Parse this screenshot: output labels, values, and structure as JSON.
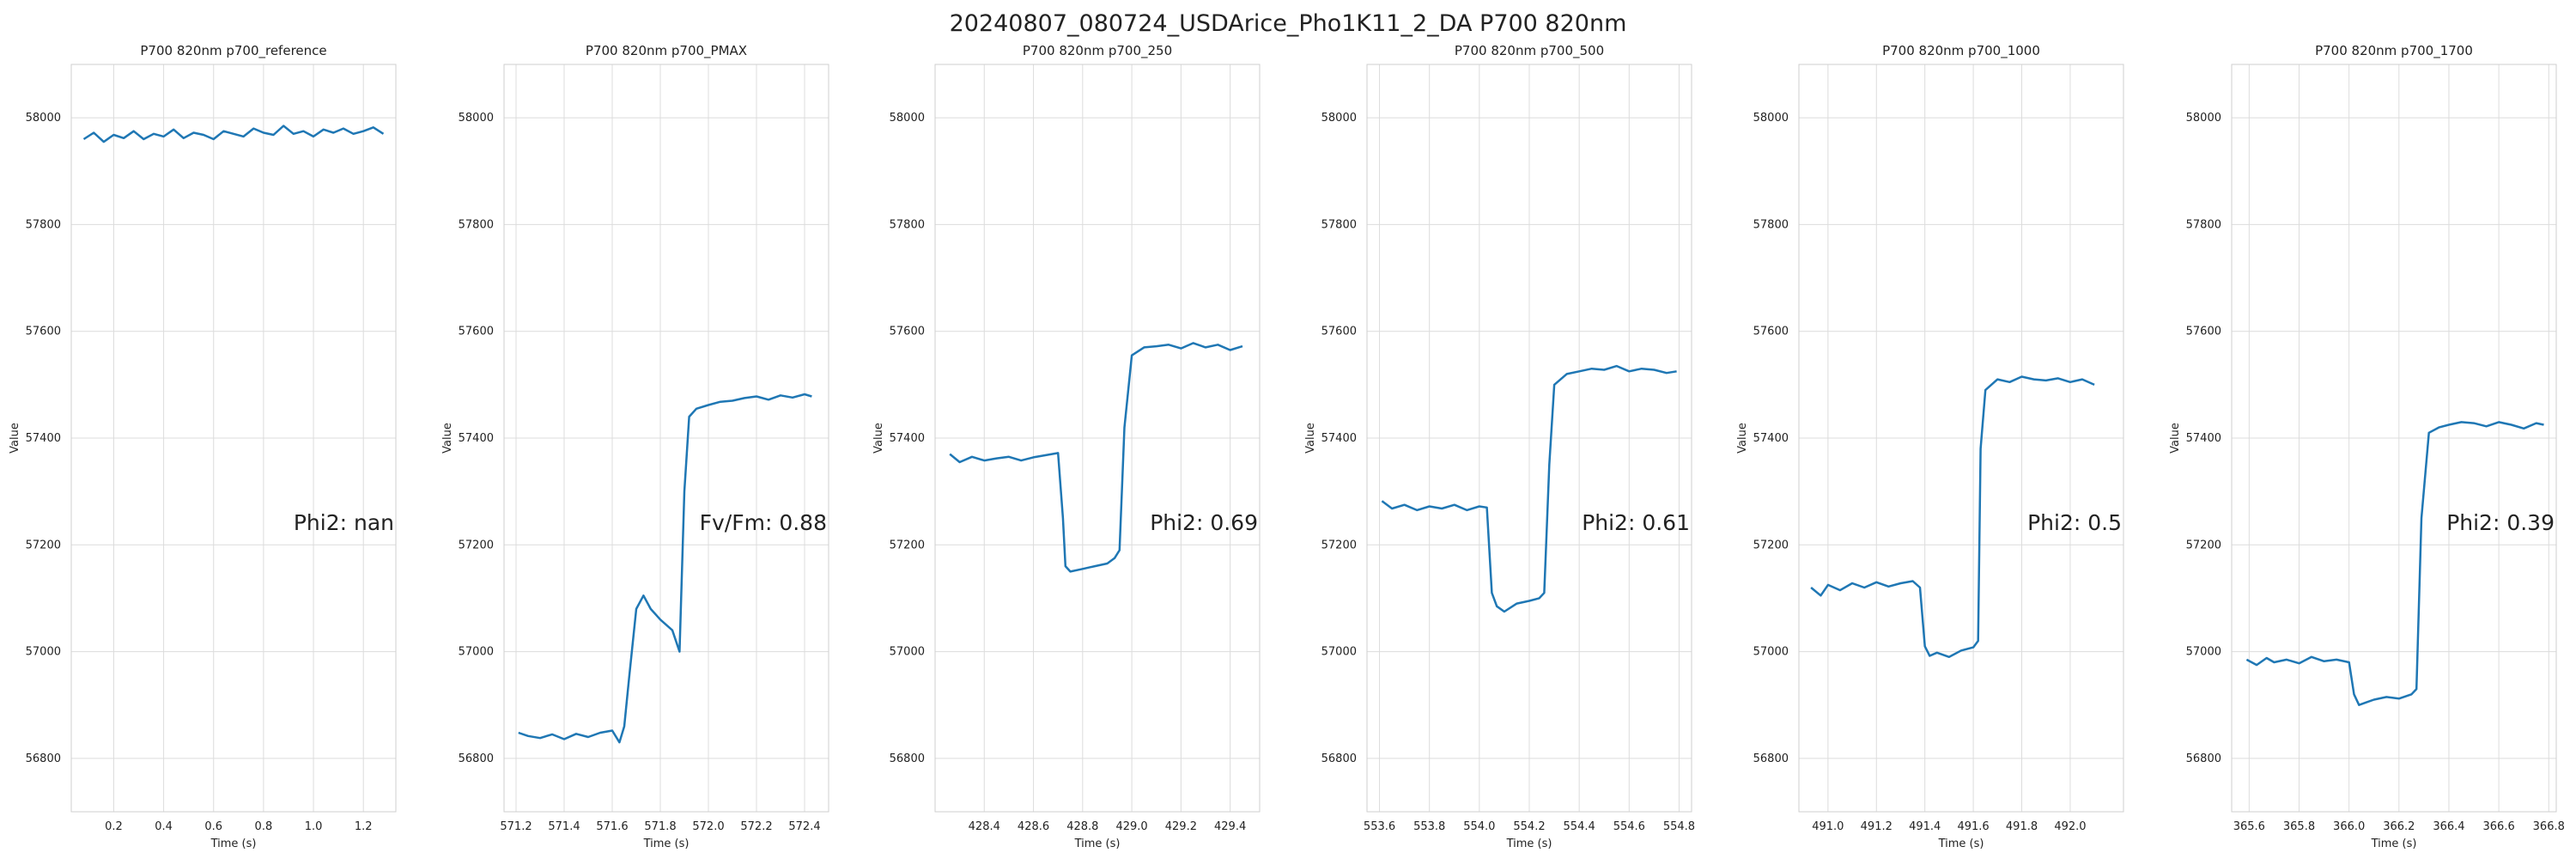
{
  "figure": {
    "title": "20240807_080724_USDArice_Pho1K11_2_DA P700 820nm"
  },
  "style": {
    "line_color": "#1f77b4",
    "grid_color": "#dcdcdc",
    "frame_color": "#cfcfcf",
    "text_color": "#222222",
    "grid": true
  },
  "chart_data": [
    {
      "type": "line",
      "title": "P700 820nm p700_reference",
      "xlabel": "Time (s)",
      "ylabel": "Value",
      "xlim": [
        0.03,
        1.33
      ],
      "ylim": [
        56700,
        58100
      ],
      "xticks": [
        0.2,
        0.4,
        0.6,
        0.8,
        1.0,
        1.2
      ],
      "xtick_labels": [
        "0.2",
        "0.4",
        "0.6",
        "0.8",
        "1.0",
        "1.2"
      ],
      "yticks": [
        56800,
        57000,
        57200,
        57400,
        57600,
        57800,
        58000
      ],
      "ytick_labels": [
        "56800",
        "57000",
        "57200",
        "57400",
        "57600",
        "57800",
        "58000"
      ],
      "annotation": "Phi2: nan",
      "series": [
        {
          "x": [
            0.08,
            0.12,
            0.16,
            0.2,
            0.24,
            0.28,
            0.32,
            0.36,
            0.4,
            0.44,
            0.48,
            0.52,
            0.56,
            0.6,
            0.64,
            0.68,
            0.72,
            0.76,
            0.8,
            0.84,
            0.88,
            0.92,
            0.96,
            1.0,
            1.04,
            1.08,
            1.12,
            1.16,
            1.2,
            1.24,
            1.28
          ],
          "y": [
            57960,
            57972,
            57955,
            57968,
            57962,
            57975,
            57960,
            57970,
            57965,
            57978,
            57962,
            57972,
            57968,
            57960,
            57975,
            57970,
            57965,
            57980,
            57972,
            57968,
            57985,
            57970,
            57975,
            57965,
            57978,
            57972,
            57980,
            57970,
            57975,
            57982,
            57970
          ]
        }
      ]
    },
    {
      "type": "line",
      "title": "P700 820nm p700_PMAX",
      "xlabel": "Time (s)",
      "ylabel": "Value",
      "xlim": [
        571.15,
        572.5
      ],
      "ylim": [
        56700,
        58100
      ],
      "xticks": [
        571.2,
        571.4,
        571.6,
        571.8,
        572.0,
        572.2,
        572.4
      ],
      "xtick_labels": [
        "571.2",
        "571.4",
        "571.6",
        "571.8",
        "572.0",
        "572.2",
        "572.4"
      ],
      "yticks": [
        56800,
        57000,
        57200,
        57400,
        57600,
        57800,
        58000
      ],
      "ytick_labels": [
        "56800",
        "57000",
        "57200",
        "57400",
        "57600",
        "57800",
        "58000"
      ],
      "annotation": "Fv/Fm: 0.88",
      "series": [
        {
          "x": [
            571.21,
            571.25,
            571.3,
            571.35,
            571.4,
            571.45,
            571.5,
            571.55,
            571.6,
            571.63,
            571.65,
            571.67,
            571.7,
            571.73,
            571.76,
            571.8,
            571.85,
            571.88,
            571.9,
            571.92,
            571.95,
            572.0,
            572.05,
            572.1,
            572.15,
            572.2,
            572.25,
            572.3,
            572.35,
            572.4,
            572.43
          ],
          "y": [
            56848,
            56842,
            56838,
            56845,
            56836,
            56846,
            56840,
            56848,
            56852,
            56830,
            56860,
            56950,
            57080,
            57105,
            57080,
            57060,
            57040,
            57000,
            57300,
            57440,
            57455,
            57462,
            57468,
            57470,
            57475,
            57478,
            57472,
            57480,
            57476,
            57482,
            57478
          ]
        }
      ]
    },
    {
      "type": "line",
      "title": "P700 820nm p700_250",
      "xlabel": "Time (s)",
      "ylabel": "Value",
      "xlim": [
        428.2,
        429.52
      ],
      "ylim": [
        56700,
        58100
      ],
      "xticks": [
        428.4,
        428.6,
        428.8,
        429.0,
        429.2,
        429.4
      ],
      "xtick_labels": [
        "428.4",
        "428.6",
        "428.8",
        "429.0",
        "429.2",
        "429.4"
      ],
      "yticks": [
        56800,
        57000,
        57200,
        57400,
        57600,
        57800,
        58000
      ],
      "ytick_labels": [
        "56800",
        "57000",
        "57200",
        "57400",
        "57600",
        "57800",
        "58000"
      ],
      "annotation": "Phi2: 0.69",
      "series": [
        {
          "x": [
            428.26,
            428.3,
            428.35,
            428.4,
            428.45,
            428.5,
            428.55,
            428.6,
            428.65,
            428.7,
            428.72,
            428.73,
            428.75,
            428.8,
            428.85,
            428.9,
            428.93,
            428.95,
            428.97,
            429.0,
            429.05,
            429.1,
            429.15,
            429.2,
            429.25,
            429.3,
            429.35,
            429.4,
            429.45
          ],
          "y": [
            57370,
            57355,
            57365,
            57358,
            57362,
            57365,
            57358,
            57364,
            57368,
            57372,
            57250,
            57160,
            57150,
            57155,
            57160,
            57165,
            57175,
            57190,
            57420,
            57555,
            57570,
            57572,
            57575,
            57568,
            57578,
            57570,
            57575,
            57565,
            57572
          ]
        }
      ]
    },
    {
      "type": "line",
      "title": "P700 820nm p700_500",
      "xlabel": "Time (s)",
      "ylabel": "Value",
      "xlim": [
        553.55,
        554.85
      ],
      "ylim": [
        56700,
        58100
      ],
      "xticks": [
        553.6,
        553.8,
        554.0,
        554.2,
        554.4,
        554.6,
        554.8
      ],
      "xtick_labels": [
        "553.6",
        "553.8",
        "554.0",
        "554.2",
        "554.4",
        "554.6",
        "554.8"
      ],
      "yticks": [
        56800,
        57000,
        57200,
        57400,
        57600,
        57800,
        58000
      ],
      "ytick_labels": [
        "56800",
        "57000",
        "57200",
        "57400",
        "57600",
        "57800",
        "58000"
      ],
      "annotation": "Phi2: 0.61",
      "series": [
        {
          "x": [
            553.61,
            553.65,
            553.7,
            553.75,
            553.8,
            553.85,
            553.9,
            553.95,
            554.0,
            554.03,
            554.05,
            554.07,
            554.1,
            554.15,
            554.2,
            554.24,
            554.26,
            554.28,
            554.3,
            554.35,
            554.4,
            554.45,
            554.5,
            554.55,
            554.6,
            554.65,
            554.7,
            554.75,
            554.79
          ],
          "y": [
            57282,
            57268,
            57275,
            57265,
            57272,
            57268,
            57275,
            57265,
            57272,
            57270,
            57110,
            57085,
            57075,
            57090,
            57095,
            57100,
            57110,
            57350,
            57500,
            57520,
            57525,
            57530,
            57528,
            57535,
            57525,
            57530,
            57528,
            57522,
            57525
          ]
        }
      ]
    },
    {
      "type": "line",
      "title": "P700 820nm p700_1000",
      "xlabel": "Time (s)",
      "ylabel": "Value",
      "xlim": [
        490.88,
        492.22
      ],
      "ylim": [
        56700,
        58100
      ],
      "xticks": [
        491.0,
        491.2,
        491.4,
        491.6,
        491.8,
        492.0
      ],
      "xtick_labels": [
        "491.0",
        "491.2",
        "491.4",
        "491.6",
        "491.8",
        "492.0"
      ],
      "yticks": [
        56800,
        57000,
        57200,
        57400,
        57600,
        57800,
        58000
      ],
      "ytick_labels": [
        "56800",
        "57000",
        "57200",
        "57400",
        "57600",
        "57800",
        "58000"
      ],
      "annotation": "Phi2: 0.5",
      "series": [
        {
          "x": [
            490.93,
            490.97,
            491.0,
            491.05,
            491.1,
            491.15,
            491.2,
            491.25,
            491.3,
            491.35,
            491.38,
            491.4,
            491.42,
            491.45,
            491.5,
            491.55,
            491.6,
            491.62,
            491.63,
            491.65,
            491.7,
            491.75,
            491.8,
            491.85,
            491.9,
            491.95,
            492.0,
            492.05,
            492.1
          ],
          "y": [
            57120,
            57105,
            57125,
            57115,
            57128,
            57120,
            57130,
            57122,
            57128,
            57132,
            57120,
            57010,
            56992,
            56998,
            56990,
            57002,
            57008,
            57020,
            57380,
            57490,
            57510,
            57505,
            57515,
            57510,
            57508,
            57512,
            57505,
            57510,
            57500
          ]
        }
      ]
    },
    {
      "type": "line",
      "title": "P700 820nm p700_1700",
      "xlabel": "Time (s)",
      "ylabel": "Value",
      "xlim": [
        365.53,
        366.83
      ],
      "ylim": [
        56700,
        58100
      ],
      "xticks": [
        365.6,
        365.8,
        366.0,
        366.2,
        366.4,
        366.6,
        366.8
      ],
      "xtick_labels": [
        "365.6",
        "365.8",
        "366.0",
        "366.2",
        "366.4",
        "366.6",
        "366.8"
      ],
      "yticks": [
        56800,
        57000,
        57200,
        57400,
        57600,
        57800,
        58000
      ],
      "ytick_labels": [
        "56800",
        "57000",
        "57200",
        "57400",
        "57600",
        "57800",
        "58000"
      ],
      "annotation": "Phi2: 0.39",
      "series": [
        {
          "x": [
            365.59,
            365.63,
            365.67,
            365.7,
            365.75,
            365.8,
            365.85,
            365.9,
            365.95,
            366.0,
            366.02,
            366.04,
            366.07,
            366.1,
            366.15,
            366.2,
            366.25,
            366.27,
            366.29,
            366.32,
            366.36,
            366.4,
            366.45,
            366.5,
            366.55,
            366.6,
            366.65,
            366.7,
            366.75,
            366.78
          ],
          "y": [
            56985,
            56975,
            56988,
            56980,
            56985,
            56978,
            56990,
            56982,
            56985,
            56980,
            56920,
            56900,
            56905,
            56910,
            56915,
            56912,
            56920,
            56930,
            57250,
            57410,
            57420,
            57425,
            57430,
            57428,
            57422,
            57430,
            57425,
            57418,
            57428,
            57425
          ]
        }
      ]
    }
  ]
}
